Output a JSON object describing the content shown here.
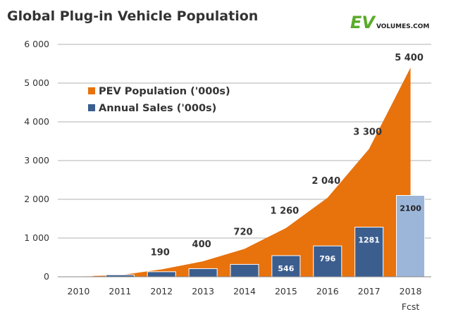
{
  "chart_data": {
    "type": "area+bar",
    "title": "Global Plug-in Vehicle Population",
    "categories": [
      "2010",
      "2011",
      "2012",
      "2013",
      "2014",
      "2015",
      "2016",
      "2017",
      "2018"
    ],
    "category_sublabels": [
      "",
      "",
      "",
      "",
      "",
      "",
      "",
      "",
      "Fcst"
    ],
    "ylim": [
      0,
      6000
    ],
    "yticks": [
      "0",
      "1 000",
      "2 000",
      "3 000",
      "4 000",
      "5 000",
      "6 000"
    ],
    "grid": true,
    "legend_position": "top-left",
    "series": [
      {
        "name": "PEV Population ('000s)",
        "type": "area",
        "color": "#E8720C",
        "values": [
          10,
          40,
          190,
          400,
          720,
          1260,
          2040,
          3300,
          5400
        ],
        "labels": [
          "",
          "",
          "190",
          "400",
          "720",
          "1 260",
          "2 040",
          "3 300",
          "5 400"
        ]
      },
      {
        "name": "Annual Sales ('000s)",
        "type": "bar",
        "color": "#3B5E8F",
        "forecast_color": "#9CB6D9",
        "values": [
          7,
          50,
          130,
          210,
          320,
          546,
          796,
          1281,
          2100
        ],
        "labels": [
          "",
          "",
          "",
          "",
          "",
          "546",
          "796",
          "1281",
          "2100"
        ]
      }
    ]
  },
  "logo": {
    "ev": "EV",
    "domain": "VOLUMES.COM",
    "ev_color": "#5AAA2A"
  }
}
